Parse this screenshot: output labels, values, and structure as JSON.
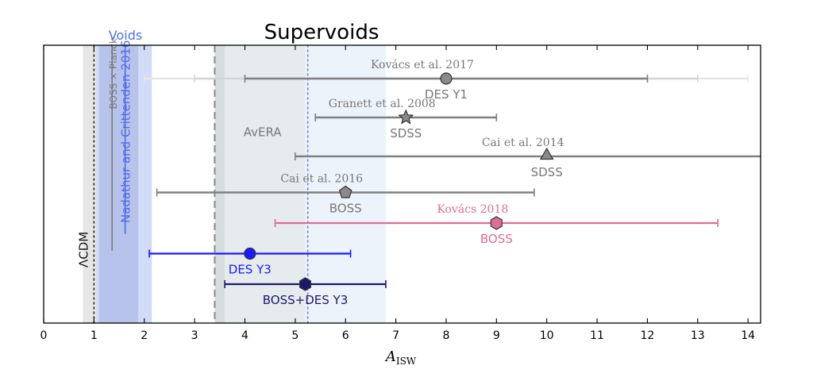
{
  "chart_data": {
    "type": "scatter",
    "title": "Supervoids",
    "subtitle": "Voids",
    "xlabel": "A",
    "xlabel_sub": "ISW",
    "xlim": [
      0,
      14.25
    ],
    "x_ticks": [
      "0",
      "1",
      "2",
      "3",
      "4",
      "5",
      "6",
      "7",
      "8",
      "9",
      "10",
      "11",
      "12",
      "13",
      "14"
    ],
    "ylabel": "",
    "grid": false,
    "colors": {
      "gray": "#808080",
      "light_gray": "#dddddd",
      "blue": "#1a1aff",
      "navy": "#1a1a66",
      "pink": "#e06c92",
      "void_blue": "#4f6ee8",
      "gray_text": "#7a7a7a",
      "band_lcdm": "#e8e8e8",
      "band_voids": "#cdd5f4",
      "band_voids_dark": "#b3bdea",
      "band_avera": "#e7ecef",
      "band_ext": "#eef4fc"
    },
    "bands": [
      {
        "name": "lcdm-band",
        "x0": 0.78,
        "x1": 1.22,
        "fill": "#e6e6e6"
      },
      {
        "name": "voids-band-outer",
        "x0": 1.05,
        "x1": 2.15,
        "fill": "#d2dbf7"
      },
      {
        "name": "voids-band-inner",
        "x0": 1.1,
        "x1": 1.88,
        "fill": "#b8c3ec"
      },
      {
        "name": "avera-band-dark",
        "x0": 3.4,
        "x1": 3.6,
        "fill": "#d7dcdf"
      },
      {
        "name": "avera-band",
        "x0": 3.6,
        "x1": 5.2,
        "fill": "#e6ebee"
      },
      {
        "name": "ext-band",
        "x0": 5.2,
        "x1": 6.8,
        "fill": "#edf3fb"
      }
    ],
    "reference_lines": [
      {
        "name": "lcdm-line",
        "x": 1.0,
        "style": "dotted",
        "color": "#222222"
      },
      {
        "name": "boss-planck-line",
        "x": 1.36,
        "style": "solid",
        "color": "#7a7a7a",
        "y0": 0.0,
        "y1": 0.74
      },
      {
        "name": "nadathur-line",
        "x": 1.62,
        "style": "solid",
        "color": "#4f6ee8",
        "y0": 0.0,
        "y1": 0.68
      },
      {
        "name": "avera-line",
        "x": 3.4,
        "style": "dashed",
        "color": "#888888"
      },
      {
        "name": "blue-dotted-line",
        "x": 5.25,
        "style": "dotted",
        "color": "#6f7fd8"
      }
    ],
    "rotated_labels": [
      {
        "name": "lcdm-label",
        "text": "ΛCDM",
        "x": 0.78,
        "y": 0.8,
        "color": "#111111"
      },
      {
        "name": "boss-planck-label",
        "text": "BOSS × Planck",
        "x": 1.36,
        "y": 0.23,
        "color": "#7a7a7a"
      },
      {
        "name": "nadathur-label",
        "text": "Nadathur and Crittenden 2016",
        "x": 1.62,
        "y": 0.64,
        "color": "#4f6ee8"
      }
    ],
    "avera_label": {
      "text": "AvERA",
      "x": 4.35,
      "y": 0.31,
      "color": "#777777"
    },
    "series": [
      {
        "name": "DES Y1",
        "ref": "Kovács et al. 2017",
        "x": 8.0,
        "xerr": [
          4.0,
          12.0
        ],
        "outer": [
          2.0,
          14.0
        ],
        "mid": [
          3.0,
          13.0
        ],
        "y": 0.12,
        "marker": "circle",
        "color": "#808080",
        "text_color": "#777777"
      },
      {
        "name": "SDSS",
        "ref": "Granett et al. 2008",
        "x": 7.2,
        "xerr": [
          5.4,
          9.0
        ],
        "y": 0.26,
        "marker": "star",
        "color": "#808080",
        "text_color": "#777777"
      },
      {
        "name": "SDSS",
        "ref": "Cai et al. 2014",
        "x": 10.0,
        "xerr": [
          5.0,
          14.25
        ],
        "y": 0.4,
        "marker": "triangle",
        "color": "#808080",
        "text_color": "#777777"
      },
      {
        "name": "BOSS",
        "ref": "Cai et al. 2016",
        "x": 6.0,
        "xerr": [
          2.25,
          9.75
        ],
        "y": 0.53,
        "marker": "pentagon",
        "color": "#808080",
        "text_color": "#777777"
      },
      {
        "name": "BOSS",
        "ref": "Kovács 2018",
        "x": 9.0,
        "xerr": [
          4.6,
          13.4
        ],
        "y": 0.64,
        "marker": "hexagon",
        "color": "#e06c92",
        "text_color": "#e06c92"
      },
      {
        "name": "DES Y3",
        "ref": "",
        "x": 4.1,
        "xerr": [
          2.1,
          6.1
        ],
        "y": 0.75,
        "marker": "circle",
        "color": "#1a1aff",
        "text_color": "#1a1aff"
      },
      {
        "name": "BOSS+DES Y3",
        "ref": "",
        "x": 5.2,
        "xerr": [
          3.6,
          6.8
        ],
        "y": 0.86,
        "marker": "hexagon",
        "color": "#1a1a66",
        "text_color": "#1a1a66"
      }
    ]
  }
}
